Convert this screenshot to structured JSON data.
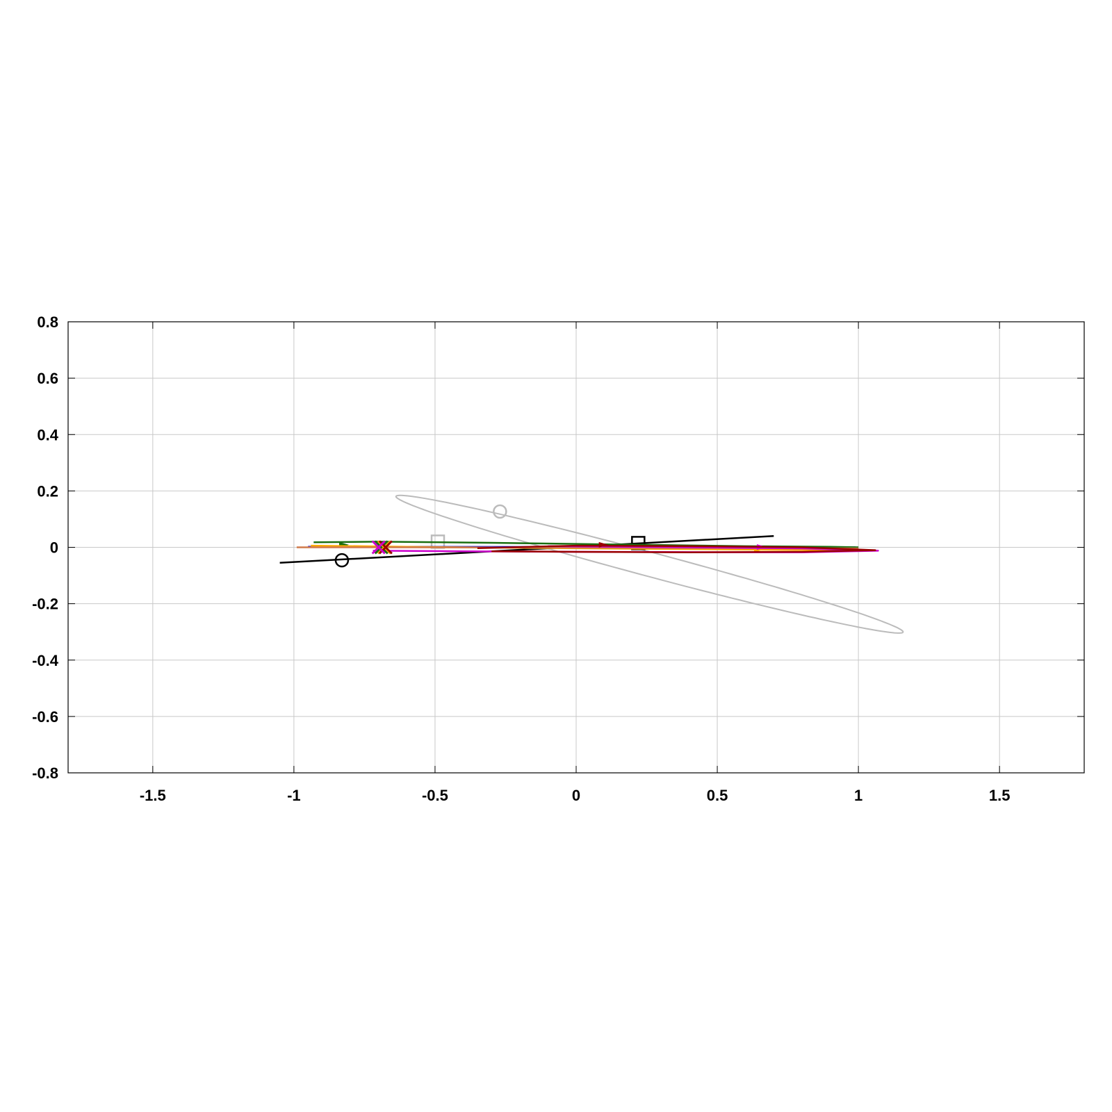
{
  "chart_data": {
    "type": "line",
    "title": "",
    "xlabel": "",
    "ylabel": "",
    "xlim": [
      -1.8,
      1.8
    ],
    "ylim": [
      -0.8,
      0.8
    ],
    "grid": true,
    "xticks": [
      -1.5,
      -1,
      -0.5,
      0,
      0.5,
      1,
      1.5
    ],
    "xtick_labels": [
      "-1.5",
      "-1",
      "-0.5",
      "0",
      "0.5",
      "1",
      "1.5"
    ],
    "yticks": [
      0.8,
      0.6,
      0.4,
      0.2,
      0,
      -0.2,
      -0.4,
      -0.6,
      -0.8
    ],
    "ytick_labels": [
      "0.8",
      "0.6",
      "0.4",
      "0.2",
      "0",
      "-0.2",
      "-0.4",
      "-0.6",
      "-0.8"
    ],
    "series": [
      {
        "color": "#bbbbbb",
        "kind": "ellipse",
        "center": [
          0.26,
          -0.06
        ],
        "semi_major": 0.93,
        "semi_minor": 0.043,
        "angle_deg": -15,
        "start_marker": {
          "shape": "circle",
          "x": -0.27,
          "y": 0.127
        },
        "end_marker": {
          "shape": "square",
          "x": -0.49,
          "y": 0.02
        }
      },
      {
        "color": "#000000",
        "kind": "line",
        "x": [
          -1.05,
          0.7
        ],
        "y": [
          -0.055,
          0.04
        ],
        "start_marker": {
          "shape": "circle",
          "x": -0.83,
          "y": -0.046
        },
        "end_marker": {
          "shape": "square",
          "x": 0.22,
          "y": 0.015
        }
      },
      {
        "color": "#0000dd",
        "kind": "line",
        "x": [
          -0.95,
          0.99
        ],
        "y": [
          0.002,
          0.0
        ]
      },
      {
        "color": "#1a6e10",
        "kind": "line",
        "x": [
          -0.93,
          -0.7,
          -0.3,
          0.0,
          0.3,
          0.6,
          0.9,
          1.0
        ],
        "y": [
          0.018,
          0.02,
          0.016,
          0.012,
          0.008,
          0.004,
          0.002,
          0.0
        ],
        "arrow": {
          "x": -0.82,
          "y": 0.009
        }
      },
      {
        "color": "#ffaa00",
        "kind": "line",
        "x": [
          -0.94,
          -0.6,
          -0.2,
          0.2,
          0.6,
          1.0,
          1.05
        ],
        "y": [
          0.006,
          0.002,
          -0.002,
          -0.005,
          -0.008,
          -0.01,
          -0.012
        ],
        "arrow": {
          "x": 0.65,
          "y": -0.008
        }
      },
      {
        "color": "#d07a4a",
        "kind": "line",
        "x": [
          -0.99,
          -0.6,
          -0.2,
          0.2,
          0.6,
          1.0
        ],
        "y": [
          0.0,
          0.0,
          -0.001,
          -0.002,
          -0.003,
          -0.004
        ]
      },
      {
        "color": "#cc00cc",
        "kind": "line",
        "x": [
          -0.72,
          -0.4,
          0.0,
          0.4,
          0.8,
          1.07,
          0.8,
          0.4,
          -0.1
        ],
        "y": [
          -0.012,
          -0.014,
          -0.016,
          -0.017,
          -0.018,
          -0.012,
          -0.004,
          0.0,
          0.004
        ],
        "arrow": {
          "x": 0.66,
          "y": 0.001
        }
      },
      {
        "color": "#990000",
        "kind": "line",
        "x": [
          -0.35,
          0.0,
          0.4,
          0.8,
          1.06,
          0.8,
          0.4,
          0.0,
          -0.3
        ],
        "y": [
          -0.003,
          0.006,
          0.004,
          0.0,
          -0.01,
          -0.016,
          -0.018,
          -0.016,
          -0.014
        ],
        "arrow": {
          "x": 0.1,
          "y": 0.009
        }
      }
    ],
    "x_markers": [
      {
        "x": -0.69,
        "y": 0.0,
        "color": "#1a6e10"
      },
      {
        "x": -0.68,
        "y": 0.0,
        "color": "#ffaa00"
      },
      {
        "x": -0.675,
        "y": 0.0,
        "color": "#990000"
      },
      {
        "x": -0.7,
        "y": 0.0,
        "color": "#cc00cc"
      }
    ]
  }
}
